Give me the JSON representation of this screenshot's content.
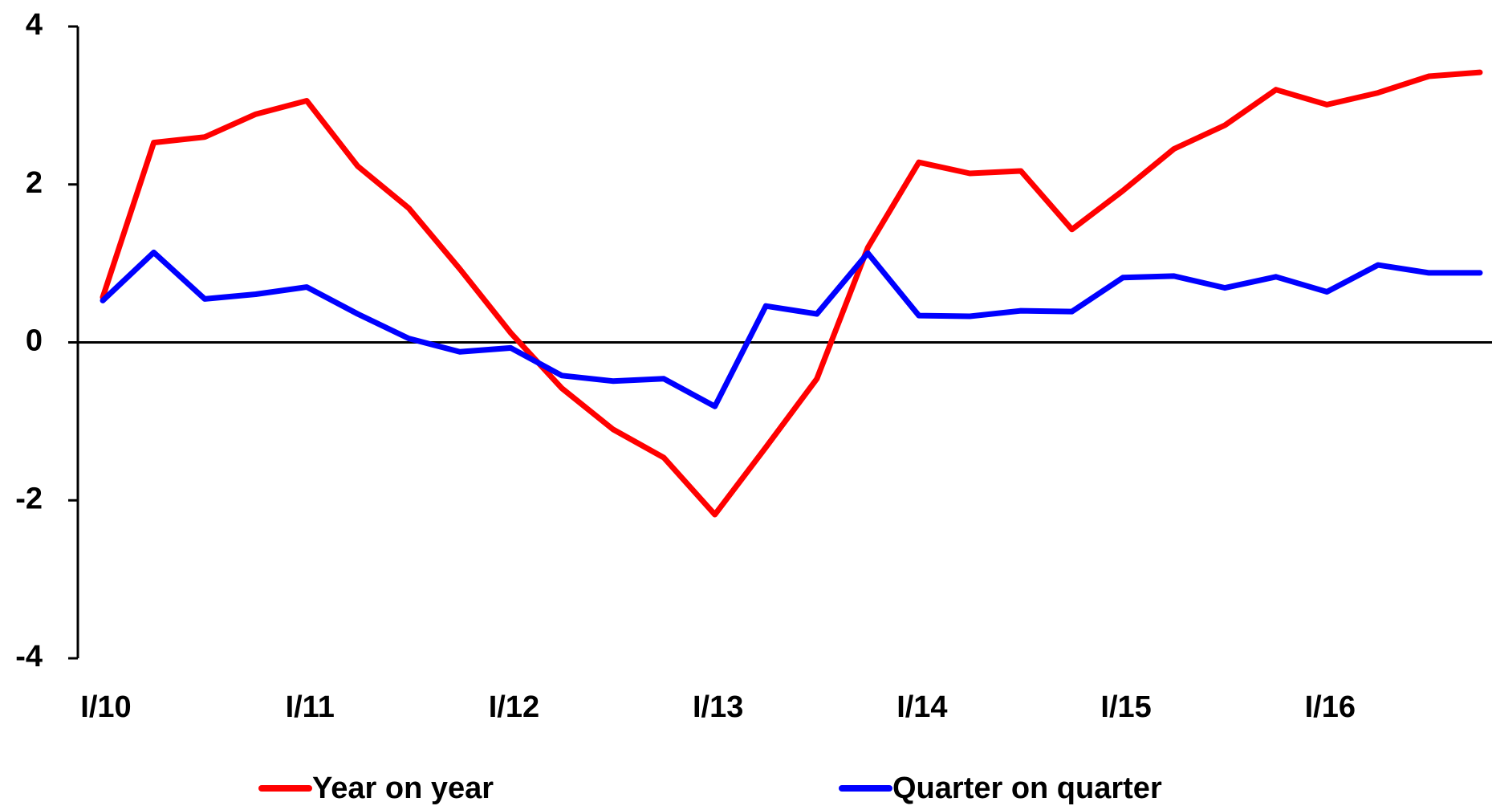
{
  "chart_data": {
    "type": "line",
    "categories": [
      "I/10",
      null,
      null,
      null,
      "I/11",
      null,
      null,
      null,
      "I/12",
      null,
      null,
      null,
      "I/13",
      null,
      null,
      null,
      "I/14",
      null,
      null,
      null,
      "I/15",
      null,
      null,
      null,
      "I/16",
      null,
      null,
      null
    ],
    "series": [
      {
        "name": "Year on year",
        "color": "#ff0000",
        "values": [
          0.57,
          2.53,
          2.6,
          2.89,
          3.06,
          2.23,
          1.7,
          0.93,
          0.12,
          -0.58,
          -1.1,
          -1.46,
          -2.18,
          -1.33,
          -0.46,
          1.2,
          2.28,
          2.14,
          2.17,
          1.43,
          1.92,
          2.45,
          2.75,
          3.2,
          3.01,
          3.16,
          3.37,
          3.42
        ]
      },
      {
        "name": "Quarter on quarter",
        "color": "#0000ff",
        "values": [
          0.53,
          1.14,
          0.55,
          0.61,
          0.7,
          0.36,
          0.05,
          -0.12,
          -0.07,
          -0.42,
          -0.49,
          -0.46,
          -0.81,
          0.46,
          0.36,
          1.13,
          0.34,
          0.33,
          0.4,
          0.39,
          0.82,
          0.84,
          0.69,
          0.83,
          0.64,
          0.98,
          0.88,
          0.88
        ]
      }
    ],
    "ylim": [
      -4,
      4
    ],
    "yticks": [
      -4,
      -2,
      0,
      2,
      4
    ],
    "grid": false
  }
}
